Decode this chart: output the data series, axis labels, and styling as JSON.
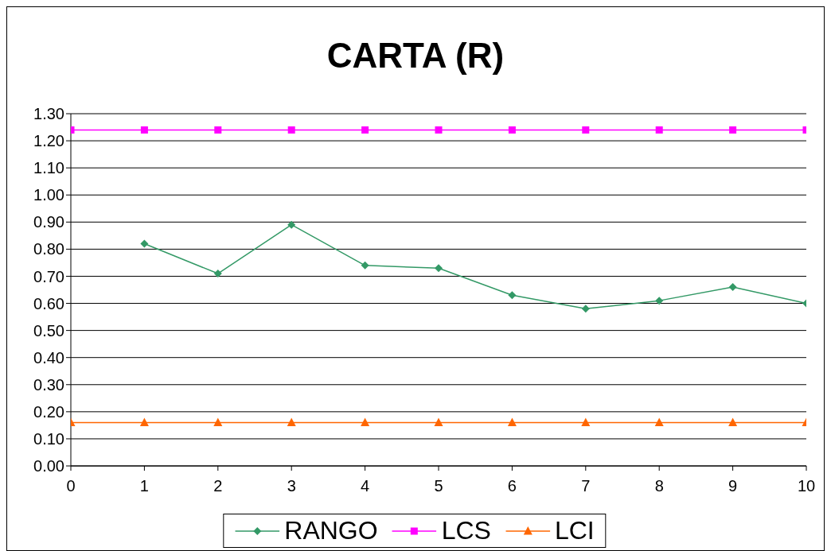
{
  "chart_data": {
    "type": "line",
    "title": "CARTA (R)",
    "xlim": [
      0,
      10
    ],
    "xticks": [
      0,
      1,
      2,
      3,
      4,
      5,
      6,
      7,
      8,
      9,
      10
    ],
    "ylim": [
      0,
      1.3
    ],
    "yticks": [
      {
        "value": 0,
        "label": "0.00"
      },
      {
        "value": 0.1,
        "label": "0.10"
      },
      {
        "value": 0.2,
        "label": "0.20"
      },
      {
        "value": 0.3,
        "label": "0.30"
      },
      {
        "value": 0.4,
        "label": "0.40"
      },
      {
        "value": 0.5,
        "label": "0.50"
      },
      {
        "value": 0.6,
        "label": "0.60"
      },
      {
        "value": 0.7,
        "label": "0.70"
      },
      {
        "value": 0.8,
        "label": "0.80"
      },
      {
        "value": 0.9,
        "label": "0.90"
      },
      {
        "value": 1.0,
        "label": "1.00"
      },
      {
        "value": 1.1,
        "label": "1.10"
      },
      {
        "value": 1.2,
        "label": "1.20"
      },
      {
        "value": 1.3,
        "label": "1.30"
      }
    ],
    "grid": "y",
    "legend": "bottom",
    "series": [
      {
        "name": "RANGO",
        "color": "#339966",
        "marker": "diamond",
        "x": [
          1,
          2,
          3,
          4,
          5,
          6,
          7,
          8,
          9,
          10
        ],
        "values": [
          0.82,
          0.71,
          0.89,
          0.74,
          0.73,
          0.63,
          0.58,
          0.61,
          0.66,
          0.6
        ]
      },
      {
        "name": "LCS",
        "color": "#ff00ff",
        "marker": "square",
        "x": [
          0,
          1,
          2,
          3,
          4,
          5,
          6,
          7,
          8,
          9,
          10
        ],
        "values": [
          1.24,
          1.24,
          1.24,
          1.24,
          1.24,
          1.24,
          1.24,
          1.24,
          1.24,
          1.24,
          1.24
        ]
      },
      {
        "name": "LCI",
        "color": "#ff6600",
        "marker": "triangle",
        "x": [
          0,
          1,
          2,
          3,
          4,
          5,
          6,
          7,
          8,
          9,
          10
        ],
        "values": [
          0.16,
          0.16,
          0.16,
          0.16,
          0.16,
          0.16,
          0.16,
          0.16,
          0.16,
          0.16,
          0.16
        ]
      }
    ]
  }
}
